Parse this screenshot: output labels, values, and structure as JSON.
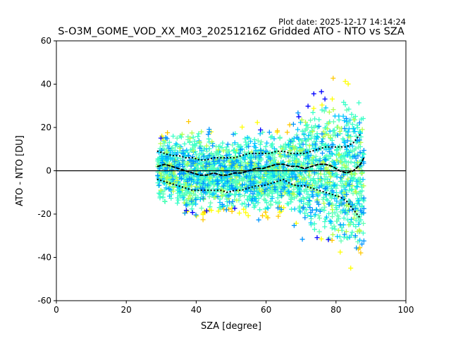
{
  "plot_date": "Plot date: 2025-12-17 14:14:24",
  "chart_data": {
    "type": "scatter",
    "title": "S-O3M_GOME_VOD_XX_M03_20251216Z Gridded ATO - NTO vs SZA",
    "xlabel": "SZA [degree]",
    "ylabel": "ATO - NTO [DU]",
    "xlim": [
      0,
      100
    ],
    "ylim": [
      -60,
      60
    ],
    "xticks": [
      0,
      20,
      40,
      60,
      80,
      100
    ],
    "yticks": [
      -60,
      -40,
      -20,
      0,
      20,
      40,
      60
    ],
    "grid": false,
    "reference_line_y": 0,
    "colors": {
      "mean": "#000000",
      "std": "#000000",
      "zero": "#000000",
      "scatter": [
        "#0000ff",
        "#0096ff",
        "#00c8ff",
        "#3cffc8",
        "#64ffb4",
        "#b4ff50",
        "#ffff00",
        "#ffc800"
      ]
    },
    "mean_curve": {
      "x": [
        29,
        31,
        33,
        35,
        37,
        39,
        41,
        43,
        45,
        47,
        49,
        51,
        53,
        55,
        57,
        59,
        61,
        63,
        65,
        67,
        69,
        71,
        73,
        75,
        77,
        79,
        81,
        83,
        85,
        87,
        88
      ],
      "y": [
        2,
        3,
        2,
        1,
        0,
        -1,
        -2,
        -2,
        -1,
        -2,
        -2,
        -1,
        -1,
        0,
        1,
        1,
        2,
        3,
        3,
        2,
        2,
        1,
        2,
        3,
        3,
        2,
        0,
        -1,
        0,
        3,
        6
      ]
    },
    "upper_std": {
      "x": [
        29,
        31,
        33,
        35,
        37,
        39,
        41,
        43,
        45,
        47,
        49,
        51,
        53,
        55,
        57,
        59,
        61,
        63,
        65,
        67,
        69,
        71,
        73,
        75,
        77,
        79,
        81,
        83,
        85,
        87
      ],
      "y": [
        9,
        8,
        7,
        7,
        6,
        6,
        5,
        5,
        6,
        6,
        6,
        6,
        7,
        8,
        8,
        8,
        8,
        9,
        9,
        8,
        8,
        8,
        9,
        10,
        11,
        11,
        11,
        11,
        13,
        17
      ]
    },
    "lower_std": {
      "x": [
        29,
        31,
        33,
        35,
        37,
        39,
        41,
        43,
        45,
        47,
        49,
        51,
        53,
        55,
        57,
        59,
        61,
        63,
        65,
        67,
        69,
        71,
        73,
        75,
        77,
        79,
        81,
        83,
        85,
        87
      ],
      "y": [
        -4,
        -5,
        -6,
        -7,
        -8,
        -9,
        -9,
        -9,
        -9,
        -9,
        -10,
        -9,
        -9,
        -8,
        -7,
        -7,
        -6,
        -5,
        -4,
        -6,
        -7,
        -7,
        -8,
        -9,
        -10,
        -11,
        -12,
        -14,
        -18,
        -22
      ]
    },
    "scatter_envelope": {
      "x": [
        29,
        33,
        37,
        41,
        45,
        49,
        53,
        57,
        61,
        65,
        69,
        73,
        77,
        81,
        85,
        88
      ],
      "upper": [
        20,
        22,
        22,
        24,
        22,
        21,
        22,
        22,
        22,
        20,
        30,
        38,
        42,
        44,
        46,
        35
      ],
      "lower": [
        -16,
        -20,
        -26,
        -28,
        -24,
        -25,
        -24,
        -26,
        -26,
        -22,
        -30,
        -36,
        -40,
        -44,
        -50,
        -45
      ]
    }
  }
}
